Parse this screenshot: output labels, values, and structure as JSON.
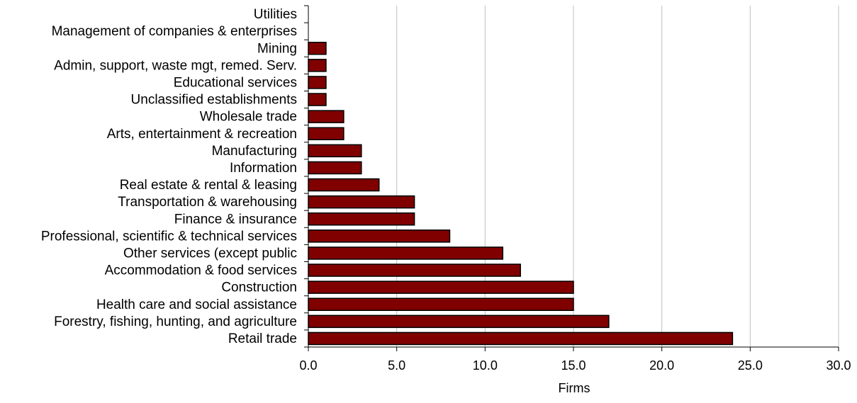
{
  "chart_data": {
    "type": "bar",
    "orientation": "horizontal",
    "categories": [
      "Utilities",
      "Management of companies & enterprises",
      "Mining",
      "Admin, support, waste mgt, remed. Serv.",
      "Educational services",
      "Unclassified establishments",
      "Wholesale trade",
      "Arts, entertainment & recreation",
      "Manufacturing",
      "Information",
      "Real estate & rental & leasing",
      "Transportation & warehousing",
      "Finance & insurance",
      "Professional, scientific & technical services",
      "Other services (except public",
      "Accommodation & food services",
      "Construction",
      "Health care and social assistance",
      "Forestry, fishing, hunting, and agriculture",
      "Retail trade"
    ],
    "values": [
      0,
      0,
      1,
      1,
      1,
      1,
      2,
      2,
      3,
      3,
      4,
      6,
      6,
      8,
      11,
      12,
      15,
      15,
      17,
      24
    ],
    "xlabel": "Firms",
    "ylabel": "",
    "title": "",
    "xlim": [
      0,
      30
    ],
    "xticks": [
      0,
      5,
      10,
      15,
      20,
      25,
      30
    ],
    "xtick_labels": [
      "0.0",
      "5.0",
      "10.0",
      "15.0",
      "20.0",
      "25.0",
      "30.0"
    ],
    "grid": "vertical",
    "legend": "none",
    "bar_color": "#800000",
    "bar_edge_color": "#000000",
    "grid_color": "#c0c0c0"
  }
}
